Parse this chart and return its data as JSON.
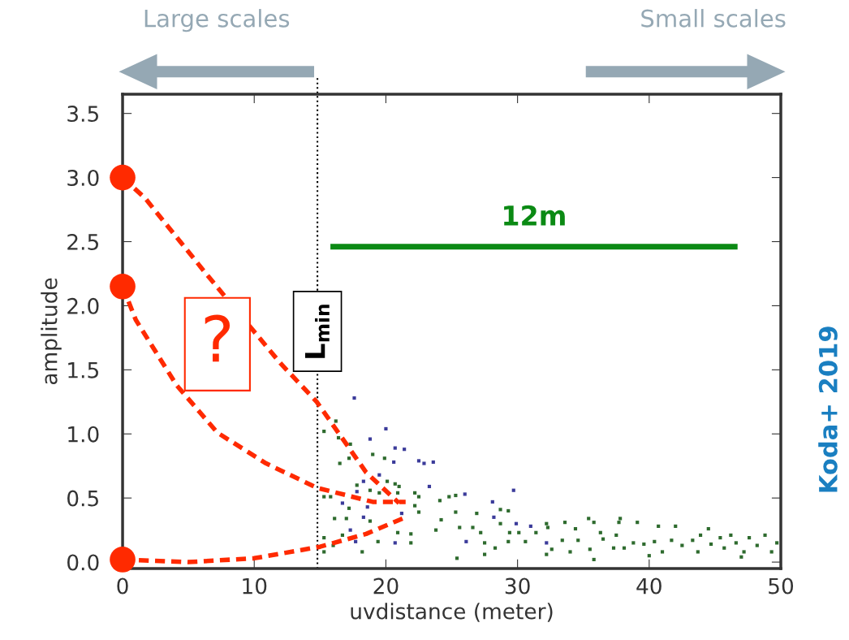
{
  "chart_data": {
    "type": "scatter",
    "xlabel": "uvdistance (meter)",
    "ylabel": "amplitude",
    "xlim": [
      0,
      50
    ],
    "ylim": [
      -0.05,
      3.65
    ],
    "xticks": [
      0,
      10,
      20,
      30,
      40,
      50
    ],
    "yticks": [
      {
        "value": 0,
        "label": "0.0"
      },
      {
        "value": 0.5,
        "label": "0.5"
      },
      {
        "value": 1,
        "label": "1.0"
      },
      {
        "value": 1.5,
        "label": "1.5"
      },
      {
        "value": 2,
        "label": "2.0"
      },
      {
        "value": 2.5,
        "label": "2.5"
      },
      {
        "value": 3,
        "label": "3.0"
      },
      {
        "value": 3.5,
        "label": "3.5"
      }
    ],
    "grid": false,
    "marker": "square",
    "series": [
      {
        "color": "#2e6b2e",
        "x": [
          15.3,
          16.2,
          16.4,
          16.5,
          17.2,
          17.3,
          19.0,
          19.9,
          20.1,
          21.0,
          20.9,
          22.2,
          22.5,
          17.8,
          18.8,
          19.5,
          15.8,
          15.3,
          16.1,
          17.2,
          17.0,
          18.8,
          20.7,
          22.2,
          22.5,
          21.9,
          21.9,
          20.9,
          19.4,
          18.2,
          16.7,
          15.3,
          15.3,
          16.0,
          24.1,
          24.8,
          25.3,
          25.3,
          23.8,
          24.2,
          25.6,
          25.4,
          26.9,
          26.6,
          27.2,
          27.5,
          27.5,
          28.3,
          28.7,
          29.3,
          28.7,
          29.4,
          30.1,
          29.3,
          30.6,
          31.4,
          32.2,
          32.3,
          20.7,
          32.2,
          33.6,
          34.4,
          35.4,
          35.8,
          37.7,
          39.1,
          40.7,
          42.0,
          33.4,
          34.0,
          34.6,
          35.5,
          36.3,
          36.5,
          35.8,
          37.5,
          37.3,
          38.1,
          38.8,
          39.6,
          40.0,
          40.4,
          41.7,
          41.0,
          42.5,
          43.3,
          43.9,
          44.5,
          44.7,
          45.4,
          45.7,
          46.2,
          46.6,
          47.2,
          47.6,
          48.2,
          48.8,
          49.3,
          49.7,
          43.7,
          47.0,
          32.6,
          37.8
        ],
        "values": [
          1.02,
          1.1,
          0.97,
          0.77,
          0.81,
          0.92,
          0.84,
          0.81,
          0.63,
          0.59,
          0.54,
          0.54,
          0.51,
          0.6,
          0.56,
          0.54,
          0.51,
          0.51,
          0.34,
          0.42,
          0.34,
          0.32,
          null,
          0.44,
          0.39,
          0.22,
          0.15,
          0.23,
          0.16,
          0.08,
          0.21,
          0.19,
          0.08,
          0.13,
          0.48,
          0.51,
          0.52,
          0.39,
          0.25,
          0.33,
          0.27,
          0.03,
          0.38,
          0.27,
          0.23,
          0.15,
          0.06,
          0.11,
          0.41,
          0.4,
          0.3,
          0.23,
          0.23,
          0.16,
          0.16,
          0.23,
          0.06,
          0.27,
          0.61,
          0.3,
          0.31,
          0.26,
          0.34,
          0.31,
          0.31,
          0.31,
          0.28,
          0.28,
          0.17,
          0.08,
          0.17,
          0.1,
          0.23,
          0.18,
          0.02,
          0.21,
          0.11,
          0.11,
          0.15,
          0.14,
          0.05,
          0.16,
          0.17,
          0.08,
          0.13,
          0.17,
          0.21,
          0.26,
          0.14,
          0.19,
          0.11,
          0.21,
          0.15,
          0.08,
          0.19,
          0.13,
          0.21,
          0.08,
          0.15,
          0.08,
          0.04,
          0.1,
          0.34
        ]
      },
      {
        "color": "#3b3b9a",
        "x": [
          17.6,
          20.0,
          18.8,
          20.7,
          21.4,
          20.6,
          22.5,
          22.9,
          23.6,
          19.5,
          18.3,
          17.8,
          23.3,
          16.7,
          18.3,
          18.6,
          21.2,
          17.3,
          17.7,
          20.7,
          26.0,
          28.1,
          29.7,
          28.2,
          26.1,
          29.9,
          31.0,
          32.2
        ],
        "values": [
          1.28,
          1.04,
          0.96,
          0.89,
          0.88,
          0.78,
          0.79,
          0.77,
          0.78,
          0.68,
          0.63,
          0.55,
          0.59,
          0.46,
          0.35,
          0.43,
          0.38,
          0.25,
          0.16,
          0.15,
          0.53,
          0.47,
          0.56,
          0.35,
          0.16,
          0.3,
          0.28,
          0.15
        ]
      },
      {
        "type": "line",
        "color": "#ff2a00",
        "line_style": "dashed",
        "marker": "none",
        "x": [
          0,
          1.7,
          6.5,
          12,
          14.75,
          18.5,
          21
        ],
        "values": [
          3.0,
          2.84,
          2.23,
          1.55,
          1.25,
          0.7,
          0.46
        ]
      },
      {
        "type": "line",
        "color": "#ff2a00",
        "line_style": "dashed",
        "marker": "none",
        "x": [
          0,
          1,
          4.1,
          7.2,
          10.9,
          14.75,
          19,
          21.5
        ],
        "values": [
          2.15,
          1.89,
          1.38,
          1.01,
          0.77,
          0.58,
          0.47,
          0.47
        ]
      },
      {
        "type": "line",
        "color": "#ff2a00",
        "line_style": "dashed",
        "marker": "none",
        "x": [
          0,
          5,
          10,
          15,
          18.5,
          21.5
        ],
        "values": [
          0.02,
          0.0,
          0.03,
          0.12,
          0.22,
          0.35
        ]
      },
      {
        "color": "#ff2a00",
        "marker": "circle",
        "x": [
          0,
          0,
          0
        ],
        "values": [
          3.0,
          2.15,
          0.02
        ]
      },
      {
        "type": "line",
        "name": "12m",
        "color": "#0b8a14",
        "line_style": "solid",
        "marker": "none",
        "x": [
          16,
          46.5
        ],
        "values": [
          2.46,
          2.46
        ]
      }
    ],
    "ref_lines": [
      {
        "axis": "x",
        "value": 14.8,
        "label": "L$_{min}$",
        "color": "#000000",
        "line_style": "dotted"
      }
    ],
    "annotations": [
      "Large scales",
      "Small scales",
      "?",
      "Koda+ 2019"
    ]
  }
}
